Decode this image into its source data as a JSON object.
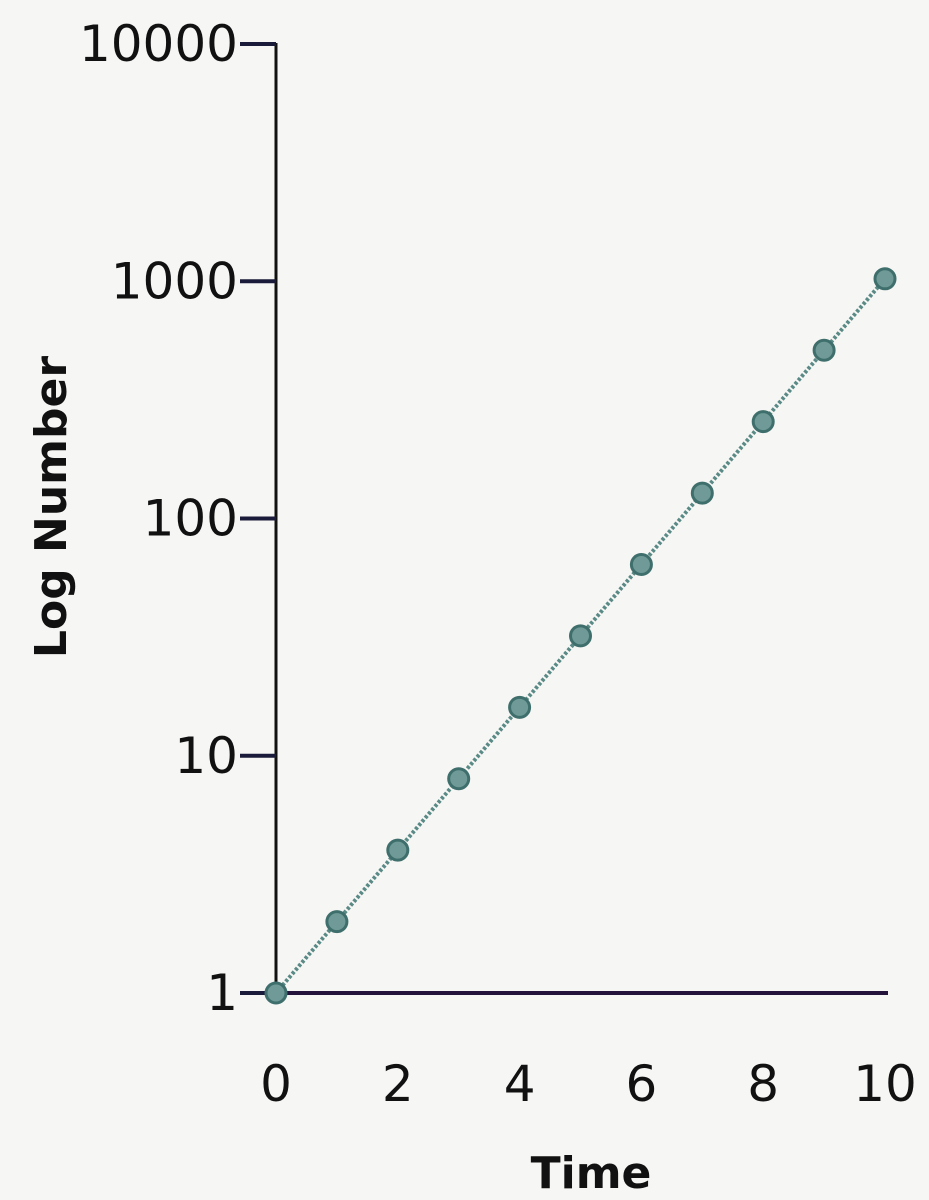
{
  "chart_data": {
    "type": "line",
    "title": "",
    "xlabel": "Time",
    "ylabel": "Log Number",
    "x_scale": "linear",
    "y_scale": "log",
    "xlim": [
      0,
      10
    ],
    "ylim": [
      1,
      10000
    ],
    "x_ticks": [
      0,
      2,
      4,
      6,
      8,
      10
    ],
    "y_ticks": [
      1,
      10,
      100,
      1000,
      10000
    ],
    "x_tick_labels": [
      "0",
      "2",
      "4",
      "6",
      "8",
      "10"
    ],
    "y_tick_labels": [
      "1",
      "10",
      "100",
      "1000",
      "10000"
    ],
    "grid": false,
    "series": [
      {
        "x": [
          0,
          1,
          2,
          3,
          4,
          5,
          6,
          7,
          8,
          9,
          10
        ],
        "values": [
          1,
          2,
          4,
          8,
          16,
          32,
          64,
          128,
          256,
          512,
          1024
        ],
        "color": "#5a8a86"
      }
    ],
    "colors": {
      "y_axis": "#111111",
      "x_axis": "#24143c",
      "tick": "#1a1a3a",
      "line": "#5a8a86",
      "marker": "#6f9a97",
      "marker_edge": "#3f6f6c"
    }
  }
}
